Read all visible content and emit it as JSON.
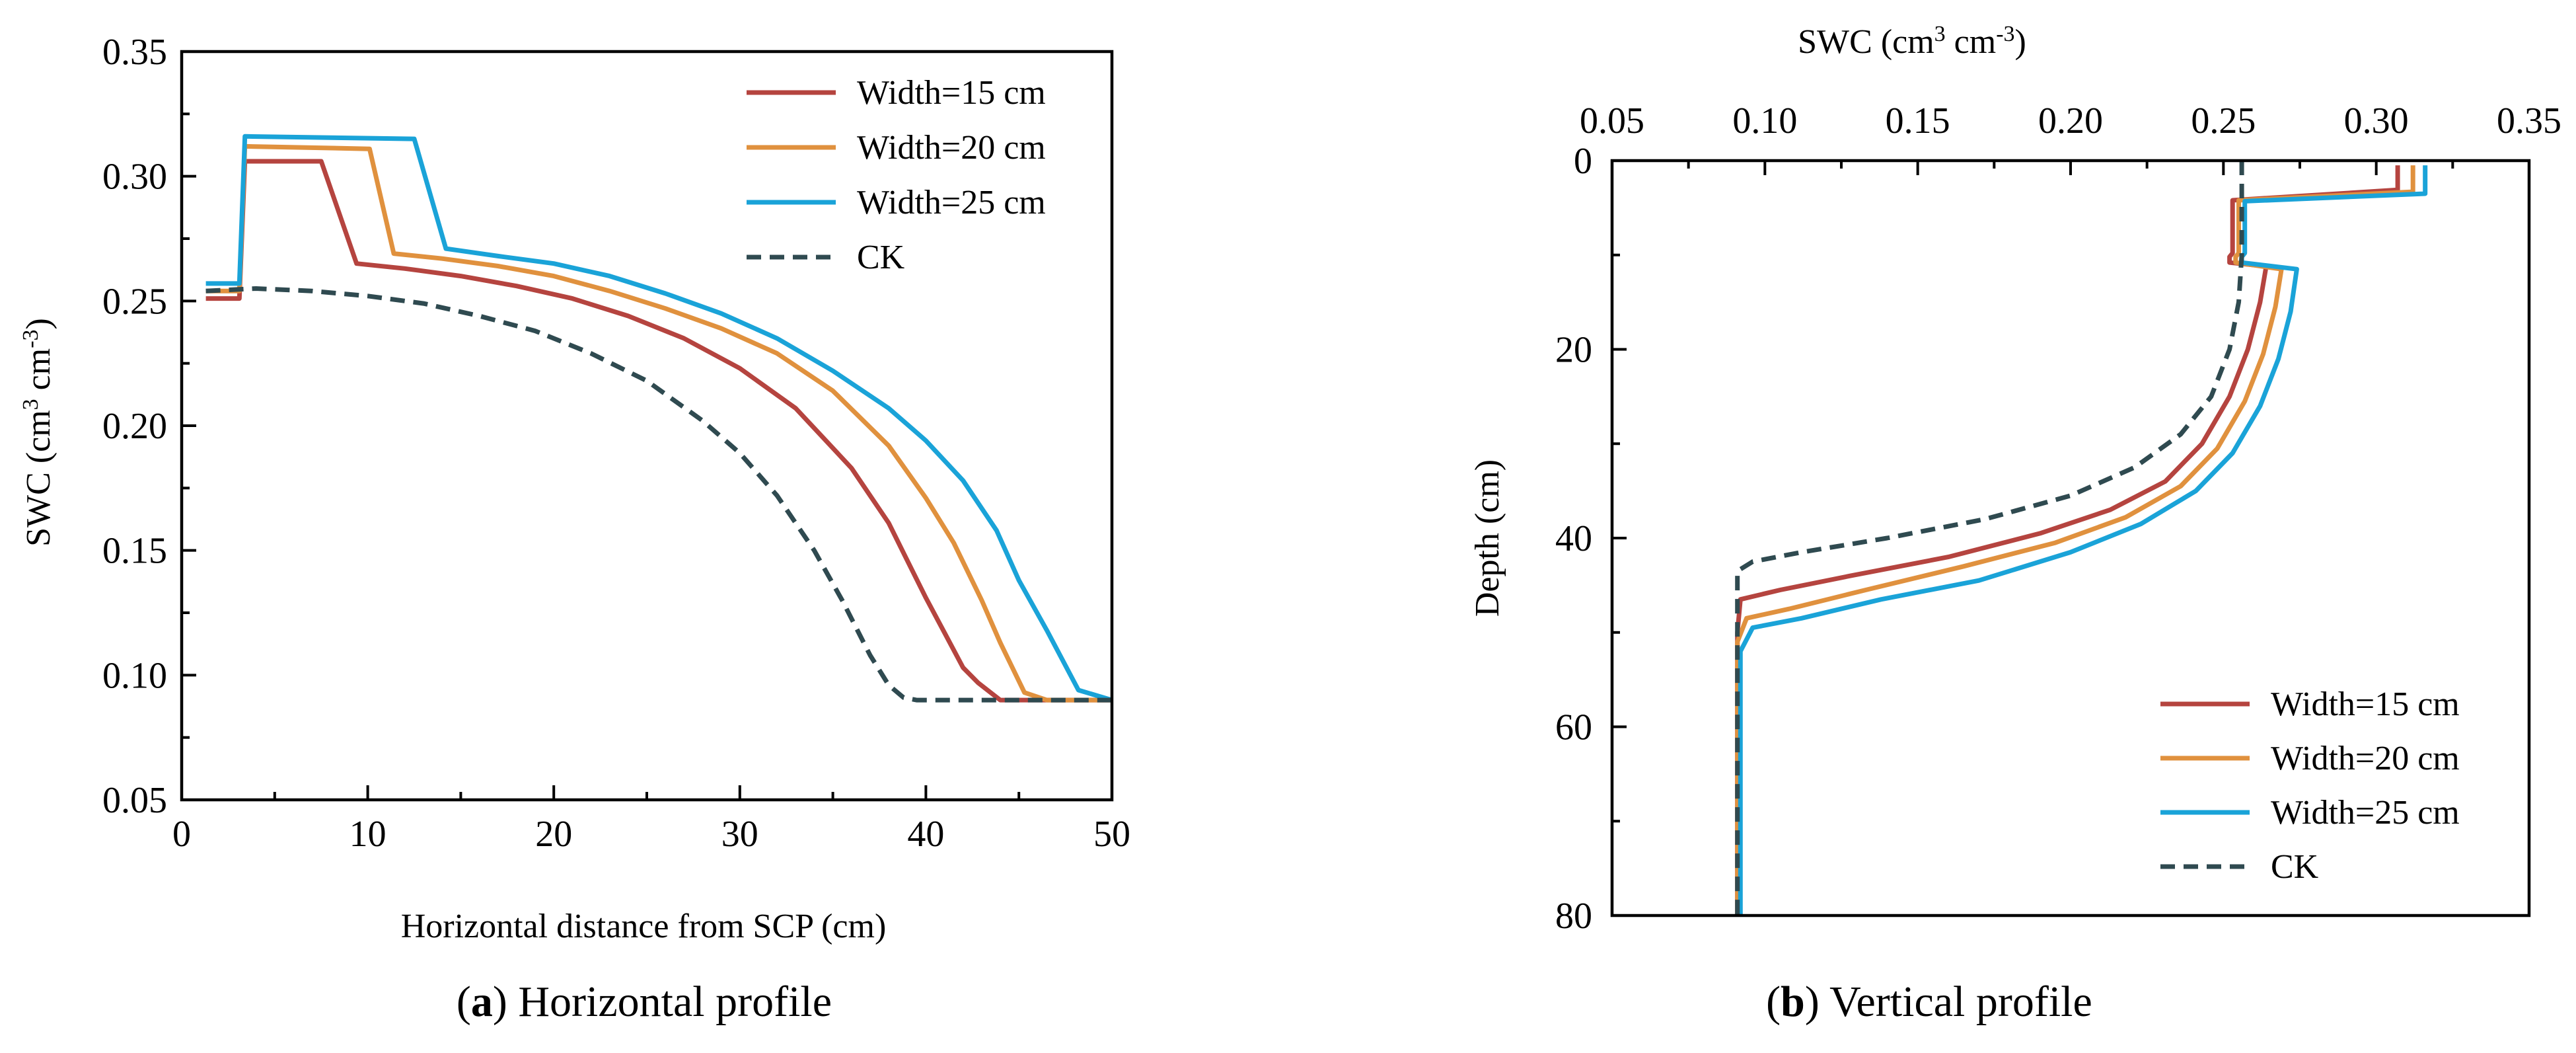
{
  "chart_data": [
    {
      "id": "a",
      "type": "line",
      "caption_letter": "a",
      "caption_open": "(",
      "caption_close": ")",
      "caption_text": " Horizontal profile",
      "xlabel": "Horizontal distance from SCP (cm)",
      "ylabel_main": "SWC (cm",
      "ylabel_sup1": "3",
      "ylabel_mid": " cm",
      "ylabel_sup2": "-3",
      "ylabel_end": ")",
      "xlim": [
        0,
        50
      ],
      "ylim": [
        0.05,
        0.35
      ],
      "x_ticks": [
        0,
        10,
        20,
        30,
        40,
        50
      ],
      "x_tick_labels": [
        "0",
        "10",
        "20",
        "30",
        "40",
        "50"
      ],
      "y_ticks": [
        0.05,
        0.1,
        0.15,
        0.2,
        0.25,
        0.3,
        0.35
      ],
      "y_tick_labels": [
        "0.05",
        "0.10",
        "0.15",
        "0.20",
        "0.25",
        "0.30",
        "0.35"
      ],
      "legend_position": "top-right",
      "series": [
        {
          "name": "Width=15 cm",
          "color": "#b5443f",
          "dash": false,
          "x": [
            1.3,
            3.1,
            3.4,
            7.5,
            9.4,
            12,
            15,
            18,
            21,
            24,
            27,
            30,
            33,
            36,
            38,
            39,
            40,
            41,
            42,
            42.8,
            44,
            50
          ],
          "y": [
            0.251,
            0.251,
            0.306,
            0.306,
            0.265,
            0.263,
            0.26,
            0.256,
            0.251,
            0.244,
            0.235,
            0.223,
            0.207,
            0.183,
            0.161,
            0.146,
            0.131,
            0.117,
            0.103,
            0.097,
            0.09,
            0.09
          ]
        },
        {
          "name": "Width=20 cm",
          "color": "#e0913e",
          "dash": false,
          "x": [
            1.3,
            3.1,
            3.4,
            10.1,
            11.4,
            14,
            17,
            20,
            23,
            26,
            29,
            32,
            35,
            38,
            40,
            41.5,
            43,
            44,
            45.3,
            46.5,
            50
          ],
          "y": [
            0.254,
            0.254,
            0.312,
            0.311,
            0.269,
            0.267,
            0.264,
            0.26,
            0.254,
            0.247,
            0.239,
            0.229,
            0.214,
            0.192,
            0.171,
            0.153,
            0.13,
            0.113,
            0.093,
            0.09,
            0.09
          ]
        },
        {
          "name": "Width=25 cm",
          "color": "#1aa3d8",
          "dash": false,
          "x": [
            1.3,
            3.1,
            3.4,
            12.5,
            14.2,
            17,
            20,
            23,
            26,
            29,
            32,
            35,
            38,
            40,
            42,
            43.8,
            45,
            46.5,
            48.2,
            50
          ],
          "y": [
            0.257,
            0.257,
            0.316,
            0.315,
            0.271,
            0.268,
            0.265,
            0.26,
            0.253,
            0.245,
            0.235,
            0.222,
            0.207,
            0.194,
            0.178,
            0.158,
            0.138,
            0.118,
            0.094,
            0.09
          ]
        },
        {
          "name": "CK",
          "color": "#2f4a50",
          "dash": true,
          "x": [
            1.3,
            4,
            7,
            10,
            13,
            16,
            19,
            22,
            25,
            28,
            30,
            32,
            34,
            35.5,
            37,
            38,
            38.8,
            39.5,
            41,
            50
          ],
          "y": [
            0.254,
            0.255,
            0.254,
            0.252,
            0.249,
            0.244,
            0.238,
            0.229,
            0.218,
            0.202,
            0.189,
            0.172,
            0.15,
            0.13,
            0.108,
            0.096,
            0.091,
            0.09,
            0.09,
            0.09
          ]
        }
      ]
    },
    {
      "id": "b",
      "type": "line",
      "caption_letter": "b",
      "caption_open": "(",
      "caption_close": ")",
      "caption_text": " Vertical profile",
      "xlabel_main": "SWC (cm",
      "xlabel_sup1": "3",
      "xlabel_mid": " cm",
      "xlabel_sup2": "-3",
      "xlabel_end": ")",
      "ylabel": "Depth (cm)",
      "xlim": [
        0.05,
        0.35
      ],
      "ylim": [
        0,
        80
      ],
      "x_axis_position": "top",
      "y_inverted": true,
      "x_ticks": [
        0.05,
        0.1,
        0.15,
        0.2,
        0.25,
        0.3,
        0.35
      ],
      "x_tick_labels": [
        "0.05",
        "0.10",
        "0.15",
        "0.20",
        "0.25",
        "0.30",
        "0.35"
      ],
      "y_ticks": [
        0,
        20,
        40,
        60,
        80
      ],
      "y_tick_labels": [
        "0",
        "20",
        "40",
        "60",
        "80"
      ],
      "legend_position": "bottom-right",
      "series": [
        {
          "name": "Width=15 cm",
          "color": "#b5443f",
          "dash": false,
          "x": [
            0.307,
            0.307,
            0.253,
            0.253,
            0.252,
            0.252,
            0.264,
            0.262,
            0.258,
            0.252,
            0.243,
            0.231,
            0.213,
            0.19,
            0.16,
            0.128,
            0.105,
            0.092,
            0.091,
            0.091
          ],
          "y": [
            0.5,
            3.1,
            4.2,
            9.8,
            10.2,
            10.8,
            11.2,
            15,
            20,
            25,
            30,
            34,
            37,
            39.5,
            42,
            44,
            45.5,
            46.5,
            50,
            80
          ]
        },
        {
          "name": "Width=20 cm",
          "color": "#e0913e",
          "dash": false,
          "x": [
            0.312,
            0.312,
            0.255,
            0.255,
            0.254,
            0.254,
            0.269,
            0.267,
            0.263,
            0.257,
            0.248,
            0.236,
            0.218,
            0.195,
            0.165,
            0.133,
            0.108,
            0.094,
            0.091,
            0.091
          ],
          "y": [
            0.5,
            3.3,
            4.2,
            9.8,
            10.2,
            10.8,
            11.5,
            15.5,
            20.5,
            25.5,
            30.5,
            34.5,
            37.8,
            40.5,
            43,
            45.5,
            47.5,
            48.5,
            51,
            80
          ]
        },
        {
          "name": "Width=25 cm",
          "color": "#1aa3d8",
          "dash": false,
          "x": [
            0.316,
            0.316,
            0.257,
            0.257,
            0.256,
            0.256,
            0.274,
            0.272,
            0.268,
            0.262,
            0.253,
            0.241,
            0.223,
            0.2,
            0.17,
            0.138,
            0.112,
            0.096,
            0.092,
            0.092
          ],
          "y": [
            0.5,
            3.5,
            4.3,
            9.8,
            10.2,
            10.8,
            11.5,
            16,
            21,
            26,
            31,
            35,
            38.5,
            41.5,
            44.5,
            46.5,
            48.5,
            49.5,
            52,
            80
          ]
        },
        {
          "name": "CK",
          "color": "#2f4a50",
          "dash": true,
          "x": [
            0.256,
            0.256,
            0.255,
            0.252,
            0.246,
            0.236,
            0.221,
            0.2,
            0.172,
            0.14,
            0.112,
            0.096,
            0.091,
            0.091
          ],
          "y": [
            0,
            10,
            15,
            20,
            25,
            29,
            32.5,
            35.5,
            38,
            40,
            41.5,
            42.5,
            43.5,
            80
          ]
        }
      ]
    }
  ]
}
